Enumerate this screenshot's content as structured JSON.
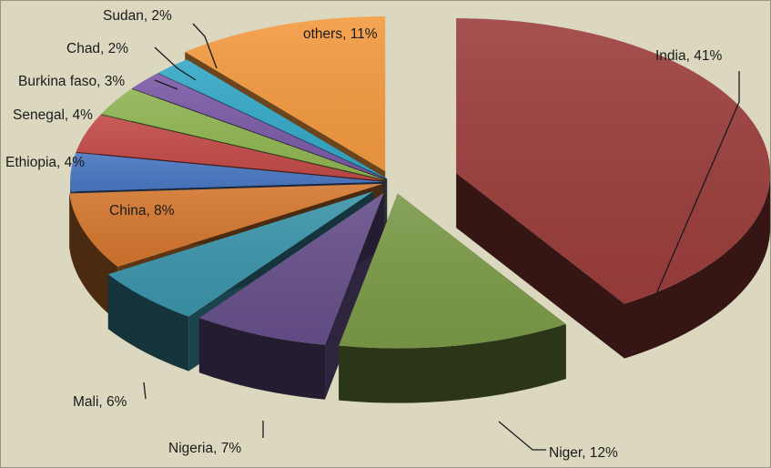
{
  "chart_data": {
    "type": "pie",
    "style": "3d-exploded",
    "title": "",
    "slices": [
      {
        "label": "India",
        "value": 41,
        "text": "India, 41%",
        "color": "#9b3e3c"
      },
      {
        "label": "Niger",
        "value": 12,
        "text": "Niger, 12%",
        "color": "#7b9a48"
      },
      {
        "label": "Nigeria",
        "value": 7,
        "text": "Nigeria, 7%",
        "color": "#66508a"
      },
      {
        "label": "Mali",
        "value": 6,
        "text": "Mali, 6%",
        "color": "#3c94aa"
      },
      {
        "label": "China",
        "value": 8,
        "text": "China, 8%",
        "color": "#d4772f"
      },
      {
        "label": "Ethiopia",
        "value": 4,
        "text": "Ethiopia, 4%",
        "color": "#4a78c2"
      },
      {
        "label": "Senegal",
        "value": 4,
        "text": "Senegal, 4%",
        "color": "#c34b48"
      },
      {
        "label": "Burkina faso",
        "value": 3,
        "text": "Burkina faso, 3%",
        "color": "#8fb552"
      },
      {
        "label": "Chad",
        "value": 2,
        "text": "Chad, 2%",
        "color": "#7a5aa6"
      },
      {
        "label": "Sudan",
        "value": 2,
        "text": "Sudan, 2%",
        "color": "#34a8c6"
      },
      {
        "label": "others",
        "value": 11,
        "text": "others, 11%",
        "color": "#f39a40"
      }
    ]
  }
}
